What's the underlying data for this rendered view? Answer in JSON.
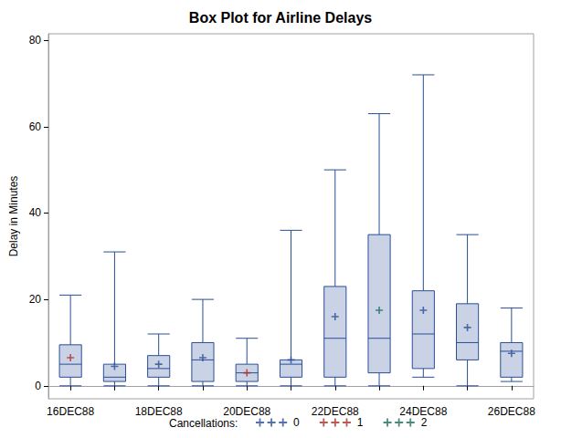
{
  "chart_data": {
    "type": "boxplot",
    "title": "Box Plot for Airline Delays",
    "y_label": "Delay in Minutes",
    "legend_title": "Cancellations:",
    "legend": "bottom",
    "categories": [
      "16DEC88",
      null,
      "18DEC88",
      null,
      "20DEC88",
      null,
      "22DEC88",
      null,
      "24DEC88",
      null,
      "26DEC88"
    ],
    "values": [
      [
        0,
        2,
        5,
        9.5,
        21
      ],
      [
        0,
        1,
        2,
        5,
        31
      ],
      [
        0,
        2,
        4,
        7,
        12
      ],
      [
        0,
        1,
        6,
        10,
        20
      ],
      [
        0,
        1,
        3,
        5,
        11
      ],
      [
        0,
        2,
        5,
        6,
        36
      ],
      [
        0,
        2,
        11,
        23,
        50
      ],
      [
        0,
        3,
        11,
        35,
        63
      ],
      [
        2,
        4,
        12,
        22,
        72
      ],
      [
        0,
        6,
        10,
        19,
        35
      ],
      [
        1,
        2,
        8,
        10,
        18
      ]
    ],
    "means": [
      6.5,
      4.5,
      5,
      6.5,
      3,
      6,
      16,
      17.5,
      17.5,
      13.5,
      7.5
    ],
    "cancellations": [
      1,
      0,
      0,
      0,
      1,
      0,
      0,
      2,
      0,
      0,
      0
    ],
    "series": [
      {
        "name": "0",
        "color": "#2A4E96"
      },
      {
        "name": "1",
        "color": "#A8322A"
      },
      {
        "name": "2",
        "color": "#1E6B5C"
      }
    ],
    "color": "#C9D3E5",
    "ylim": [
      -3,
      81.5
    ],
    "yticks": [
      0,
      20,
      40,
      60,
      80
    ]
  }
}
